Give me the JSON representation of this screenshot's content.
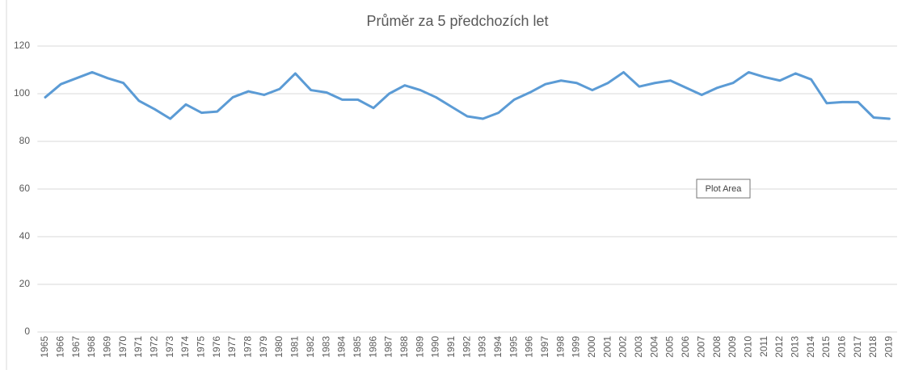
{
  "chart_data": {
    "type": "line",
    "title": "Průměr za 5 předchozích let",
    "categories": [
      "1965",
      "1966",
      "1967",
      "1968",
      "1969",
      "1970",
      "1971",
      "1972",
      "1973",
      "1974",
      "1975",
      "1976",
      "1977",
      "1978",
      "1979",
      "1980",
      "1981",
      "1982",
      "1983",
      "1984",
      "1985",
      "1986",
      "1987",
      "1988",
      "1989",
      "1990",
      "1991",
      "1992",
      "1993",
      "1994",
      "1995",
      "1996",
      "1997",
      "1998",
      "1999",
      "2000",
      "2001",
      "2002",
      "2003",
      "2004",
      "2005",
      "2006",
      "2007",
      "2008",
      "2009",
      "2010",
      "2011",
      "2012",
      "2013",
      "2014",
      "2015",
      "2016",
      "2017",
      "2018",
      "2019"
    ],
    "series": [
      {
        "name": "Průměr za 5 předchozích let",
        "color": "#5b9bd5",
        "values": [
          98.5,
          104,
          106.5,
          109,
          106.5,
          104.5,
          97,
          93.5,
          89.5,
          95.5,
          92,
          92.5,
          98.5,
          101,
          99.5,
          102,
          108.5,
          101.5,
          100.5,
          97.5,
          97.5,
          94,
          100,
          103.5,
          101.5,
          98.5,
          94.5,
          90.5,
          89.5,
          92,
          97.5,
          100.5,
          104,
          105.5,
          104.5,
          101.5,
          104.5,
          109,
          103,
          104.5,
          105.5,
          102.5,
          99.5,
          102.5,
          104.5,
          109,
          107,
          105.5,
          108.5,
          106,
          96,
          96.5,
          96.5,
          90,
          89.5
        ]
      }
    ],
    "ylim": [
      0,
      120
    ],
    "yticks": [
      0,
      20,
      40,
      60,
      80,
      100,
      120
    ],
    "grid": true,
    "tooltip": "Plot Area"
  }
}
